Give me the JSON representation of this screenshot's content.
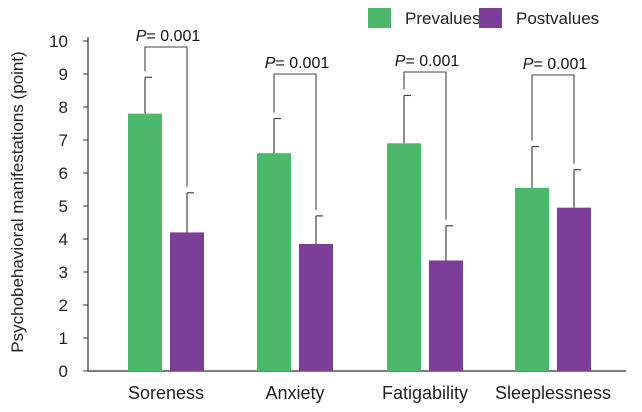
{
  "chart_data": {
    "type": "bar",
    "title": "",
    "xlabel": "",
    "ylabel": "Psychobehavioral manifestations (point)",
    "ylim": [
      0,
      10
    ],
    "yticks": [
      "0",
      "1",
      "2",
      "3",
      "4",
      "5",
      "6",
      "7",
      "8",
      "9",
      "10"
    ],
    "categories": [
      "Soreness",
      "Anxiety",
      "Fatigability",
      "Sleeplessness"
    ],
    "series": [
      {
        "name": "Prevalues",
        "color": "#4cb86a",
        "values": [
          7.8,
          6.6,
          6.9,
          5.55
        ],
        "errors": [
          1.1,
          1.05,
          1.45,
          1.25
        ]
      },
      {
        "name": "Postvalues",
        "color": "#7b3f9a",
        "values": [
          4.2,
          3.85,
          3.35,
          4.95
        ],
        "errors": [
          1.2,
          0.85,
          1.05,
          1.15
        ]
      }
    ],
    "annotations": [
      {
        "p_symbol": "P",
        "p_value": "= 0.001",
        "category": "Soreness"
      },
      {
        "p_symbol": "P",
        "p_value": "= 0.001",
        "category": "Anxiety"
      },
      {
        "p_symbol": "P",
        "p_value": "= 0.001",
        "category": "Fatigability"
      },
      {
        "p_symbol": "P",
        "p_value": "= 0.001",
        "category": "Sleeplessness"
      }
    ],
    "legend_position": "top-right"
  }
}
